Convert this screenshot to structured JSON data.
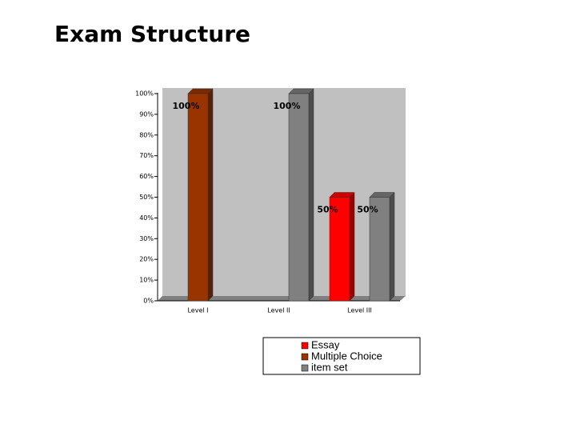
{
  "title": "Exam Structure",
  "chart_data": {
    "type": "bar",
    "categories": [
      "Level I",
      "Level II",
      "Level III"
    ],
    "series": [
      {
        "name": "Essay",
        "color": "#ff0000",
        "values": [
          null,
          null,
          50
        ],
        "value_labels": [
          null,
          null,
          "50%"
        ]
      },
      {
        "name": "Multiple Choice",
        "color": "#993300",
        "values": [
          100,
          null,
          null
        ],
        "value_labels": [
          "100%",
          null,
          null
        ]
      },
      {
        "name": "item set",
        "color": "#808080",
        "values": [
          null,
          100,
          50
        ],
        "value_labels": [
          null,
          "100%",
          "50%"
        ]
      }
    ],
    "ylim": [
      0,
      100
    ],
    "yticks": [
      {
        "value": 0,
        "label": "0%"
      },
      {
        "value": 10,
        "label": "10%"
      },
      {
        "value": 20,
        "label": "20%"
      },
      {
        "value": 30,
        "label": "30%"
      },
      {
        "value": 40,
        "label": "40%"
      },
      {
        "value": 50,
        "label": "50%"
      },
      {
        "value": 60,
        "label": "60%"
      },
      {
        "value": 70,
        "label": "70%"
      },
      {
        "value": 80,
        "label": "80%"
      },
      {
        "value": 90,
        "label": "90%"
      },
      {
        "value": 100,
        "label": "100%"
      }
    ],
    "legend": "bottom"
  }
}
